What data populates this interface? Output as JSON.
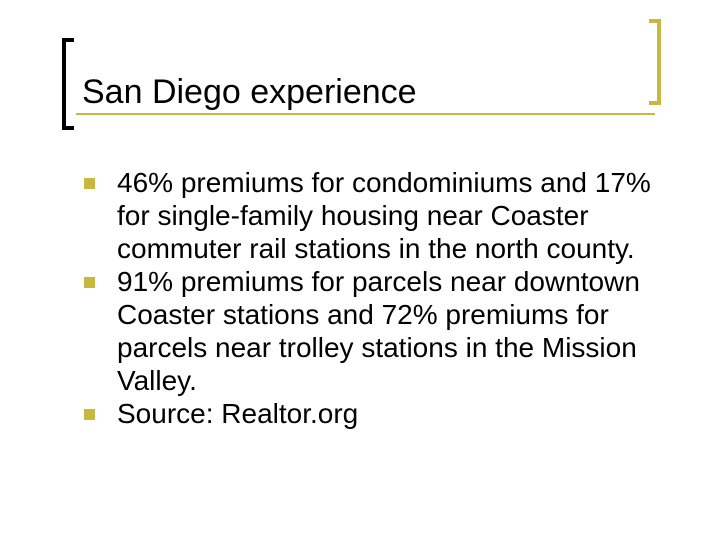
{
  "slide": {
    "title": "San Diego experience",
    "bullets": [
      "46% premiums for condominiums and 17% for single-family housing near Coaster commuter rail stations in the north county.",
      "91% premiums for parcels near downtown Coaster stations and 72% premiums for parcels near trolley stations in the Mission Valley.",
      "Source: Realtor.org"
    ]
  },
  "colors": {
    "accent": "#c8b840",
    "text": "#000000",
    "background": "#ffffff"
  },
  "icons": {
    "bullet": "square-bullet-icon"
  }
}
